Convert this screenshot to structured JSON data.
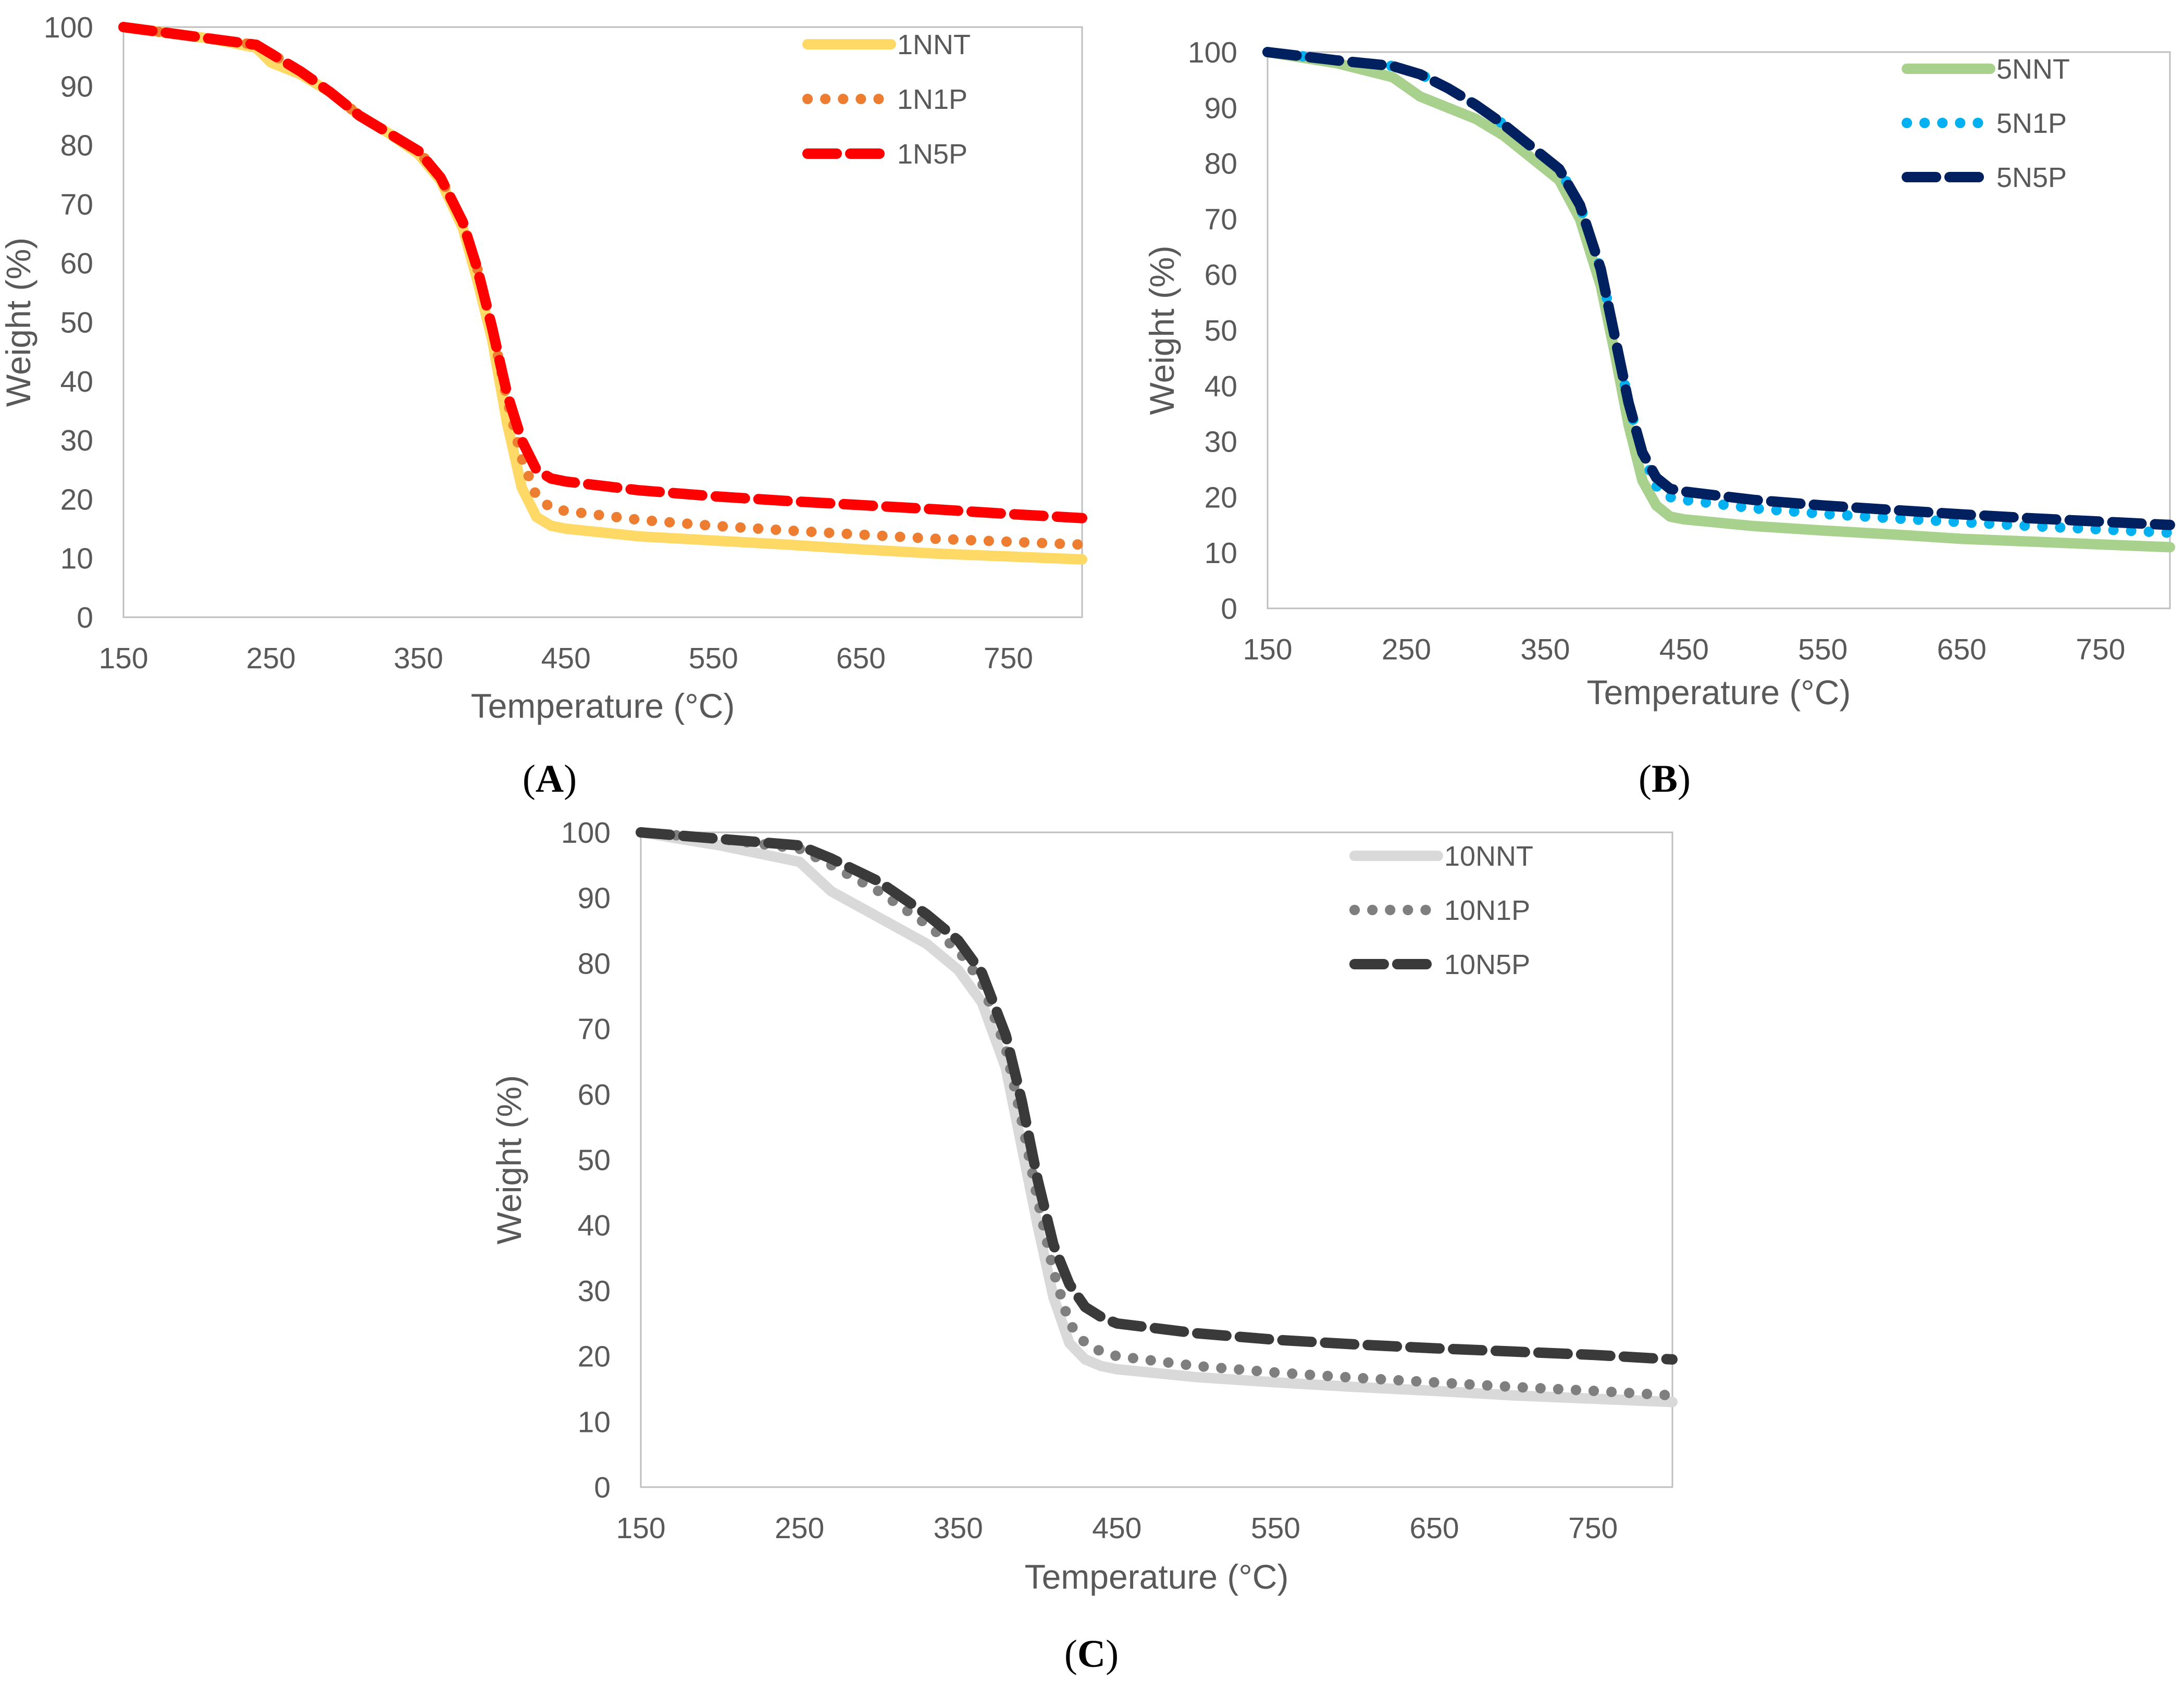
{
  "chart_data": [
    {
      "type": "line",
      "panel_label": "A",
      "xlabel": "Temperature (°C)",
      "ylabel": "Weight (%)",
      "xlim": [
        150,
        800
      ],
      "ylim": [
        0,
        100
      ],
      "xticks": [
        150,
        250,
        350,
        450,
        550,
        650,
        750
      ],
      "yticks": [
        0,
        10,
        20,
        30,
        40,
        50,
        60,
        70,
        80,
        90,
        100
      ],
      "legend_position": "top-right",
      "series": [
        {
          "name": "1NNT",
          "color": "#FFD966",
          "style": "solid",
          "x": [
            150,
            180,
            210,
            240,
            250,
            270,
            290,
            310,
            330,
            350,
            365,
            380,
            390,
            400,
            410,
            420,
            430,
            440,
            450,
            500,
            550,
            600,
            650,
            700,
            750,
            800
          ],
          "y": [
            100,
            99,
            98,
            96.5,
            94,
            92,
            89,
            85,
            82,
            78.5,
            74,
            66,
            57,
            47,
            33,
            22,
            17,
            15.5,
            15,
            13.7,
            13,
            12.3,
            11.5,
            10.8,
            10.3,
            9.8
          ]
        },
        {
          "name": "1N1P",
          "color": "#ED7D31",
          "style": "dotted",
          "x": [
            150,
            180,
            210,
            240,
            250,
            270,
            290,
            310,
            330,
            350,
            365,
            380,
            390,
            400,
            410,
            420,
            430,
            440,
            450,
            500,
            550,
            600,
            650,
            700,
            750,
            800
          ],
          "y": [
            100,
            99,
            98,
            97,
            95.5,
            92.5,
            89,
            85,
            82,
            79,
            74.5,
            67,
            59,
            49,
            37,
            27,
            20.5,
            18.5,
            18,
            16.5,
            15.5,
            14.7,
            14,
            13.3,
            12.8,
            12.3
          ]
        },
        {
          "name": "1N5P",
          "color": "#FF0000",
          "style": "dashed",
          "x": [
            150,
            180,
            210,
            240,
            250,
            270,
            290,
            310,
            330,
            350,
            365,
            380,
            390,
            400,
            410,
            420,
            430,
            440,
            450,
            500,
            550,
            600,
            650,
            700,
            750,
            800
          ],
          "y": [
            100,
            99,
            98,
            97,
            95.5,
            92.5,
            89,
            85,
            82,
            79,
            74.5,
            67,
            59,
            49,
            38,
            30,
            25,
            23.5,
            23,
            21.5,
            20.5,
            19.7,
            19,
            18.3,
            17.5,
            16.8
          ]
        }
      ]
    },
    {
      "type": "line",
      "panel_label": "B",
      "xlabel": "Temperature (°C)",
      "ylabel": "Weight (%)",
      "xlim": [
        150,
        800
      ],
      "ylim": [
        0,
        100
      ],
      "xticks": [
        150,
        250,
        350,
        450,
        550,
        650,
        750
      ],
      "yticks": [
        0,
        10,
        20,
        30,
        40,
        50,
        60,
        70,
        80,
        90,
        100
      ],
      "legend_position": "top-right",
      "series": [
        {
          "name": "5NNT",
          "color": "#A9D18E",
          "style": "solid",
          "x": [
            150,
            200,
            240,
            260,
            280,
            300,
            320,
            340,
            360,
            375,
            390,
            400,
            410,
            420,
            430,
            440,
            450,
            500,
            550,
            600,
            650,
            700,
            750,
            800
          ],
          "y": [
            100,
            98,
            95.5,
            92,
            90,
            88,
            85,
            81,
            77,
            70,
            58,
            46,
            33,
            23,
            18.5,
            16.5,
            16,
            14.8,
            14,
            13.3,
            12.5,
            12,
            11.5,
            11
          ]
        },
        {
          "name": "5N1P",
          "color": "#00B0F0",
          "style": "dotted",
          "x": [
            150,
            200,
            240,
            260,
            280,
            300,
            320,
            340,
            360,
            375,
            390,
            400,
            410,
            420,
            430,
            440,
            450,
            500,
            550,
            600,
            650,
            700,
            750,
            800
          ],
          "y": [
            100,
            98.5,
            97.5,
            96,
            93.5,
            90.5,
            87,
            83,
            79,
            72.5,
            61,
            49,
            37,
            28,
            22,
            20,
            19.5,
            18,
            17,
            16.2,
            15.5,
            14.8,
            14.2,
            13.6
          ]
        },
        {
          "name": "5N5P",
          "color": "#002060",
          "style": "dashed",
          "x": [
            150,
            200,
            240,
            260,
            280,
            300,
            320,
            340,
            360,
            375,
            390,
            400,
            410,
            420,
            430,
            440,
            450,
            500,
            550,
            600,
            650,
            700,
            750,
            800
          ],
          "y": [
            100,
            98.5,
            97.5,
            96,
            93.5,
            90.5,
            87,
            83,
            79,
            72.5,
            61,
            49,
            37,
            28,
            23.5,
            21.5,
            21,
            19.5,
            18.5,
            17.7,
            16.9,
            16.2,
            15.6,
            15
          ]
        }
      ]
    },
    {
      "type": "line",
      "panel_label": "C",
      "xlabel": "Temperature (°C)",
      "ylabel": "Weight (%)",
      "xlim": [
        150,
        800
      ],
      "ylim": [
        0,
        100
      ],
      "xticks": [
        150,
        250,
        350,
        450,
        550,
        650,
        750
      ],
      "yticks": [
        0,
        10,
        20,
        30,
        40,
        50,
        60,
        70,
        80,
        90,
        100
      ],
      "legend_position": "top-right",
      "series": [
        {
          "name": "10NNT",
          "color": "#D9D9D9",
          "style": "solid",
          "x": [
            150,
            200,
            250,
            270,
            300,
            330,
            350,
            365,
            380,
            390,
            400,
            410,
            420,
            430,
            440,
            450,
            500,
            550,
            600,
            650,
            700,
            750,
            800
          ],
          "y": [
            100,
            98,
            95.5,
            91,
            87,
            83,
            79,
            74,
            64,
            52,
            40,
            29,
            22,
            19.5,
            18.5,
            18,
            16.8,
            16,
            15.3,
            14.7,
            14,
            13.5,
            13
          ]
        },
        {
          "name": "10N1P",
          "color": "#7F7F7F",
          "style": "dotted",
          "x": [
            150,
            200,
            250,
            270,
            300,
            330,
            350,
            365,
            380,
            390,
            400,
            410,
            420,
            430,
            440,
            450,
            500,
            550,
            600,
            650,
            700,
            750,
            800
          ],
          "y": [
            100,
            99,
            97.5,
            95,
            91,
            86,
            82,
            77,
            67,
            56,
            44,
            33,
            25,
            22,
            20.7,
            20,
            18.5,
            17.5,
            16.7,
            16,
            15.3,
            14.7,
            14
          ]
        },
        {
          "name": "10N5P",
          "color": "#3A3A3A",
          "style": "dashed",
          "x": [
            150,
            200,
            250,
            270,
            300,
            330,
            350,
            365,
            380,
            390,
            400,
            410,
            420,
            430,
            440,
            450,
            500,
            550,
            600,
            650,
            700,
            750,
            800
          ],
          "y": [
            100,
            99,
            98,
            96,
            92.5,
            87.5,
            83.5,
            78.5,
            69,
            59,
            47,
            37,
            31,
            27.5,
            26,
            25,
            23.5,
            22.5,
            21.8,
            21.2,
            20.7,
            20.2,
            19.5
          ]
        }
      ]
    }
  ]
}
